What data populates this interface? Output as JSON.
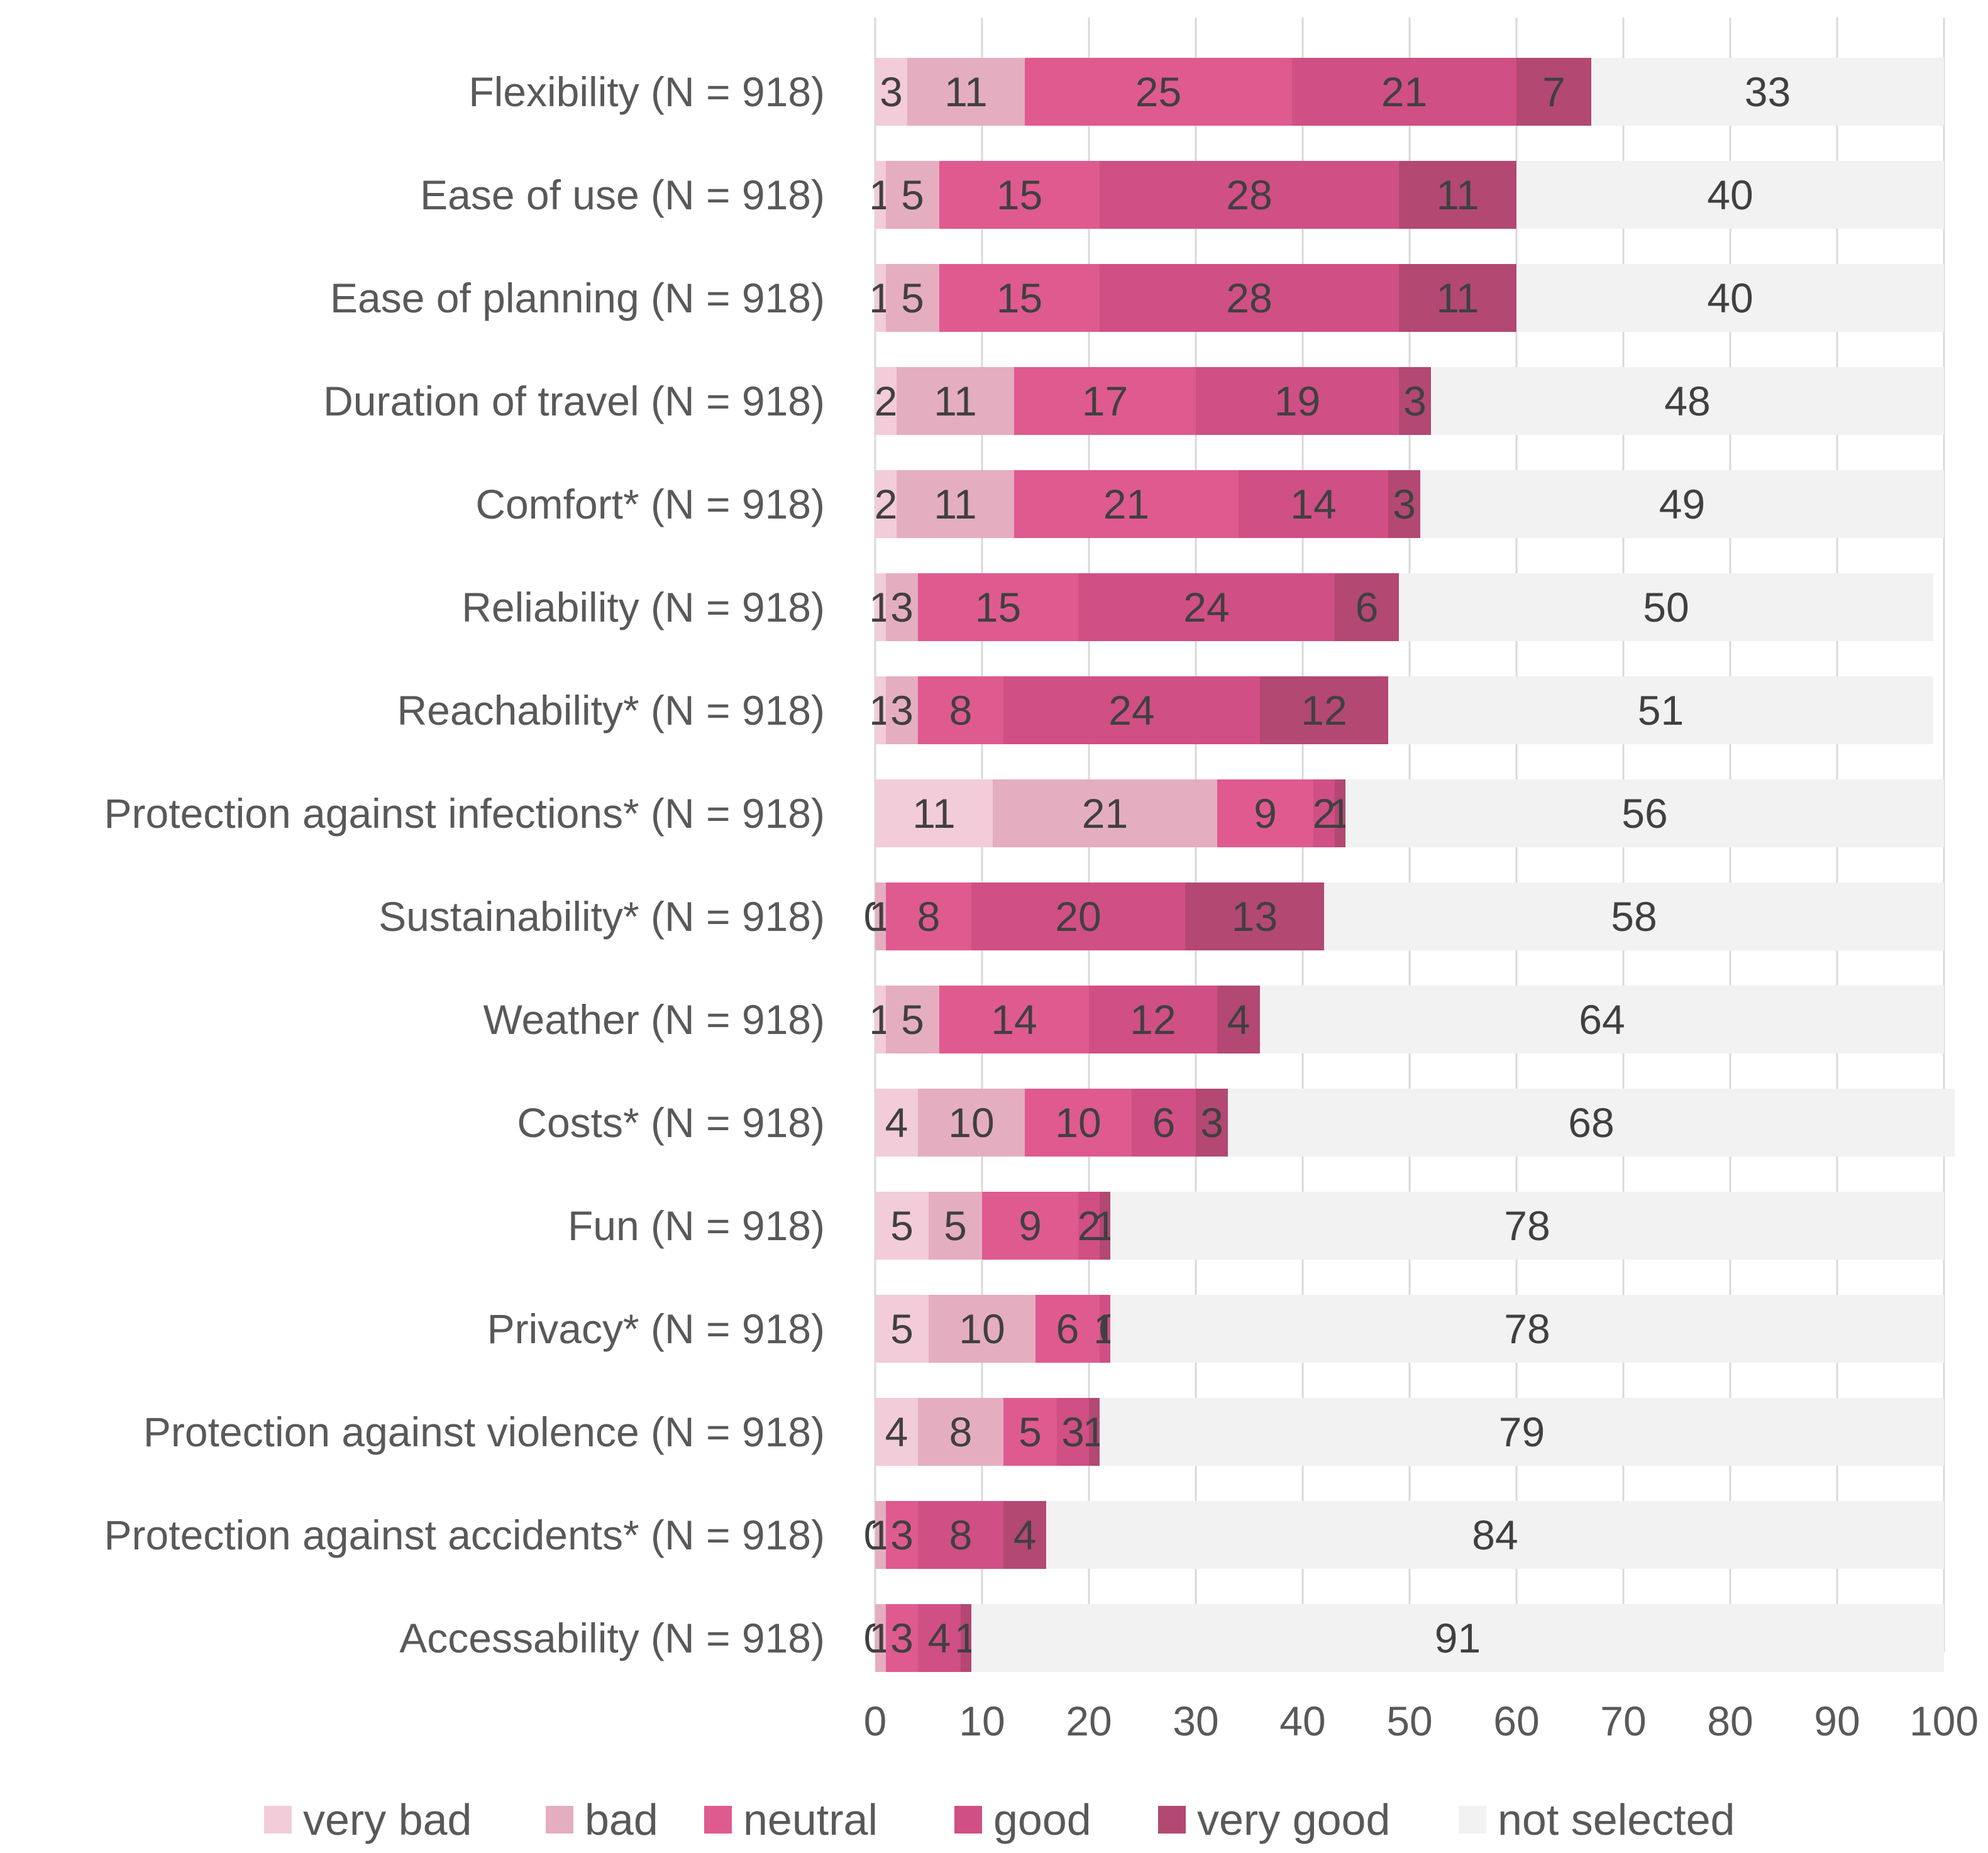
{
  "chart_data": {
    "type": "bar",
    "orientation": "horizontal",
    "stacked": true,
    "title": "",
    "xlabel": "",
    "ylabel": "",
    "xlim": [
      0,
      100
    ],
    "xticks": [
      0,
      10,
      20,
      30,
      40,
      50,
      60,
      70,
      80,
      90,
      100
    ],
    "grid": "vertical",
    "legend_position": "bottom",
    "categories": [
      "Flexibility  (N = 918)",
      "Ease of use (N = 918)",
      "Ease of planning (N = 918)",
      "Duration of travel (N = 918)",
      "Comfort* (N = 918)",
      "Reliability (N = 918)",
      "Reachability* (N = 918)",
      "Protection against infections* (N = 918)",
      "Sustainability* (N = 918)",
      "Weather (N = 918)",
      "Costs* (N = 918)",
      "Fun (N = 918)",
      "Privacy* (N = 918)",
      "Protection against violence (N = 918)",
      "Protection against accidents* (N = 918)",
      "Accessability (N = 918)"
    ],
    "series": [
      {
        "name": "very bad",
        "color": "#f2ccd8",
        "values": [
          3,
          1,
          1,
          2,
          2,
          1,
          1,
          11,
          0,
          1,
          4,
          5,
          5,
          4,
          0,
          0
        ]
      },
      {
        "name": "bad",
        "color": "#e5adc0",
        "values": [
          11,
          5,
          5,
          11,
          11,
          3,
          3,
          21,
          1,
          5,
          10,
          5,
          10,
          8,
          1,
          1
        ]
      },
      {
        "name": "neutral",
        "color": "#df5a8f",
        "values": [
          25,
          15,
          15,
          17,
          21,
          15,
          8,
          9,
          8,
          14,
          10,
          9,
          6,
          5,
          3,
          3
        ]
      },
      {
        "name": "good",
        "color": "#d04f85",
        "values": [
          21,
          28,
          28,
          19,
          14,
          24,
          24,
          2,
          20,
          12,
          6,
          2,
          1,
          3,
          8,
          4
        ]
      },
      {
        "name": "very good",
        "color": "#b34873",
        "values": [
          7,
          11,
          11,
          3,
          3,
          6,
          12,
          1,
          13,
          4,
          3,
          1,
          0,
          1,
          4,
          1
        ]
      },
      {
        "name": "not selected",
        "color": "#f2f2f2",
        "values": [
          33,
          40,
          40,
          48,
          49,
          50,
          51,
          56,
          58,
          64,
          68,
          78,
          78,
          79,
          84,
          91
        ]
      }
    ]
  }
}
